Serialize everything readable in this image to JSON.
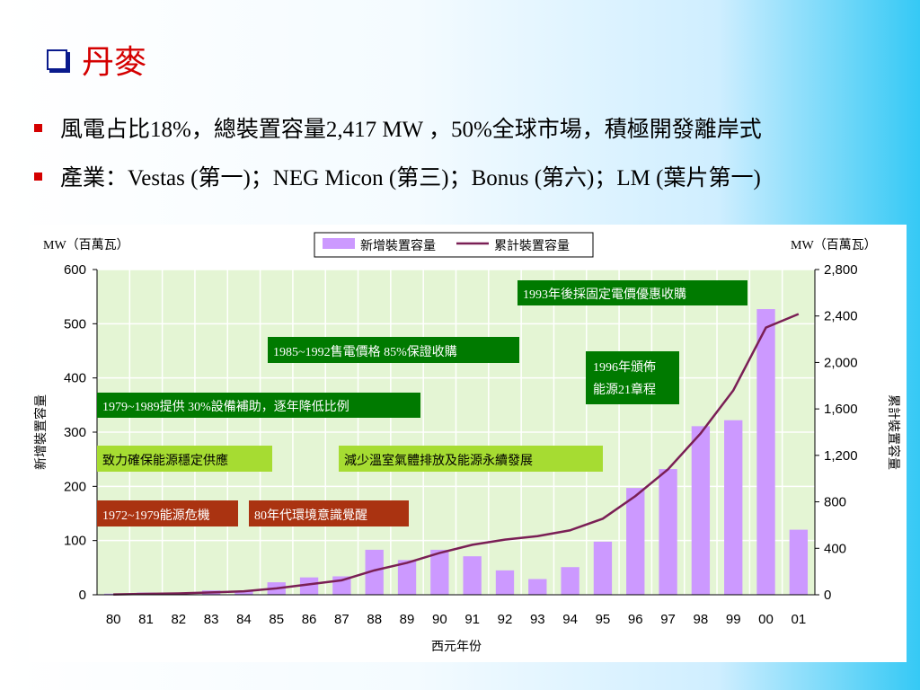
{
  "title": "丹麥",
  "bullets": [
    "風電占比18%，總裝置容量2,417 MW ，50%全球市場，積極開發離岸式",
    "產業：Vestas (第一)；NEG Micon (第三)；Bonus (第六)；LM (葉片第一)"
  ],
  "colors": {
    "bar": "#cc99ff",
    "line": "#7a1f55",
    "plot_bg": "#e4f5d4",
    "green_box": "#007a00",
    "lime_box": "#a6dc32",
    "brown_box": "#aa3311"
  },
  "chart_data": {
    "type": "bar+line",
    "categories": [
      "80",
      "81",
      "82",
      "83",
      "84",
      "85",
      "86",
      "87",
      "88",
      "89",
      "90",
      "91",
      "92",
      "93",
      "94",
      "95",
      "96",
      "97",
      "98",
      "99",
      "00",
      "01"
    ],
    "series": [
      {
        "name": "新增裝置容量",
        "type": "bar",
        "axis": "left",
        "values": [
          2,
          4,
          3,
          8,
          7,
          23,
          32,
          34,
          83,
          64,
          83,
          71,
          45,
          29,
          51,
          98,
          197,
          232,
          311,
          322,
          527,
          120
        ]
      },
      {
        "name": "累計裝置容量",
        "type": "line",
        "axis": "right",
        "values": [
          3,
          8,
          12,
          20,
          30,
          55,
          90,
          125,
          210,
          275,
          360,
          430,
          475,
          505,
          555,
          655,
          850,
          1080,
          1390,
          1760,
          2300,
          2417
        ]
      }
    ],
    "left_axis_unit": "MW（百萬瓦）",
    "right_axis_unit": "MW（百萬瓦）",
    "ylabel_left": "新增裝置容量",
    "ylabel_right": "累計裝置容量",
    "xlabel": "西元年份",
    "ylim_left": [
      0,
      600
    ],
    "yticks_left": [
      "0",
      "100",
      "200",
      "300",
      "400",
      "500",
      "600"
    ],
    "ylim_right": [
      0,
      2800
    ],
    "yticks_right": [
      "0",
      "400",
      "800",
      "1,200",
      "1,600",
      "2,000",
      "2,400",
      "2,800"
    ],
    "grid": true,
    "legend_position": "top-center",
    "annotations": [
      {
        "text": "1993年後採固定電價優惠收購",
        "style": "green"
      },
      {
        "text": "1985~1992售電價格 85%保證收購",
        "style": "green"
      },
      {
        "text": "1996年頒佈",
        "text2": "能源21章程",
        "style": "green"
      },
      {
        "text": "1979~1989提供 30%設備補助，逐年降低比例",
        "style": "green"
      },
      {
        "text": "致力確保能源穩定供應",
        "style": "lime"
      },
      {
        "text": "減少溫室氣體排放及能源永續發展",
        "style": "lime"
      },
      {
        "text": "1972~1979能源危機",
        "style": "brown"
      },
      {
        "text": "80年代環境意識覺醒",
        "style": "brown"
      }
    ]
  }
}
